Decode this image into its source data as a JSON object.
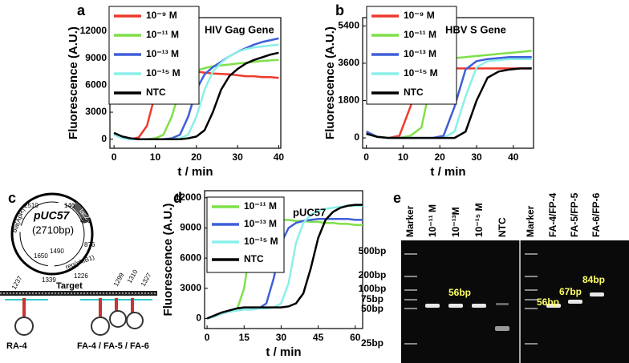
{
  "chart_data": [
    {
      "type": "line",
      "panel": "a",
      "title": "HIV Gag Gene",
      "x_label": "t / min",
      "y_label": "Fluorescence (A.U.)",
      "x": [
        0,
        2,
        4,
        6,
        8,
        10,
        12,
        14,
        16,
        18,
        20,
        22,
        24,
        26,
        28,
        30,
        32,
        34,
        36,
        38,
        40
      ],
      "series": [
        {
          "name": "10⁻⁹ M",
          "color": "#ee3a2e",
          "values": [
            700,
            200,
            0,
            200,
            1500,
            5000,
            7000,
            7500,
            7600,
            7600,
            7500,
            7400,
            7300,
            7250,
            7200,
            7100,
            7000,
            7000,
            6900,
            6900,
            6800
          ]
        },
        {
          "name": "10⁻¹¹ M",
          "color": "#7fe04a",
          "values": [
            600,
            200,
            0,
            0,
            0,
            100,
            500,
            2500,
            5500,
            7000,
            7600,
            7900,
            8100,
            8200,
            8300,
            8400,
            8500,
            8600,
            8700,
            8750,
            8800
          ]
        },
        {
          "name": "10⁻¹³ M",
          "color": "#3f5fd8",
          "values": [
            500,
            150,
            0,
            0,
            0,
            0,
            0,
            100,
            500,
            2500,
            5500,
            7200,
            8000,
            8600,
            9200,
            9700,
            10100,
            10500,
            10800,
            11000,
            11200
          ]
        },
        {
          "name": "10⁻¹⁵ M",
          "color": "#8af0e8",
          "values": [
            500,
            150,
            0,
            0,
            0,
            0,
            0,
            0,
            100,
            500,
            2500,
            5500,
            7500,
            8500,
            9200,
            9700,
            10000,
            10200,
            10300,
            10400,
            10500
          ]
        },
        {
          "name": "NTC",
          "color": "#000000",
          "values": [
            700,
            300,
            100,
            0,
            0,
            0,
            0,
            0,
            0,
            100,
            300,
            1000,
            3000,
            5500,
            7000,
            7800,
            8400,
            8800,
            9100,
            9400,
            9600
          ]
        }
      ],
      "xlim": [
        -1,
        40.5
      ],
      "xticks": [
        0,
        10,
        20,
        30,
        40
      ],
      "ylim": [
        -1000,
        13500
      ],
      "yticks": [
        0,
        3000,
        6000,
        9000,
        12000
      ]
    },
    {
      "type": "line",
      "panel": "b",
      "title": "HBV S Gene",
      "x_label": "t / min",
      "y_label": "Fluorescence (A.U.)",
      "x": [
        0,
        3,
        6,
        9,
        12,
        15,
        18,
        21,
        24,
        27,
        30,
        33,
        36,
        39,
        42,
        45
      ],
      "series": [
        {
          "name": "10⁻⁹ M",
          "color": "#ee3a2e",
          "values": [
            300,
            50,
            0,
            100,
            1500,
            3100,
            3300,
            3350,
            3350,
            3350,
            3350,
            3350,
            3350,
            3350,
            3350,
            3350
          ]
        },
        {
          "name": "10⁻¹¹ M",
          "color": "#7fe04a",
          "values": [
            200,
            50,
            0,
            0,
            100,
            500,
            3000,
            3800,
            3850,
            3900,
            3950,
            4000,
            4050,
            4100,
            4150,
            4200
          ]
        },
        {
          "name": "10⁻¹³ M",
          "color": "#3f5fd8",
          "values": [
            300,
            50,
            0,
            0,
            0,
            0,
            0,
            100,
            1500,
            3300,
            3700,
            3800,
            3850,
            3900,
            3900,
            3900
          ]
        },
        {
          "name": "10⁻¹⁵ M",
          "color": "#8af0e8",
          "values": [
            200,
            50,
            0,
            0,
            0,
            0,
            0,
            0,
            300,
            2000,
            3400,
            3700,
            3750,
            3800,
            3800,
            3800
          ]
        },
        {
          "name": "NTC",
          "color": "#000000",
          "values": [
            200,
            50,
            0,
            0,
            0,
            0,
            0,
            0,
            0,
            300,
            1800,
            2900,
            3200,
            3300,
            3350,
            3350
          ]
        }
      ],
      "xlim": [
        -1,
        45.5
      ],
      "xticks": [
        0,
        10,
        20,
        30,
        40
      ],
      "ylim": [
        -500,
        5800
      ],
      "yticks": [
        0,
        1800,
        3600,
        5400
      ]
    },
    {
      "type": "line",
      "panel": "d",
      "title": "pUC57",
      "x_label": "t / min",
      "y_label": "Fluorescence (A.U.)",
      "x": [
        0,
        3,
        6,
        9,
        12,
        15,
        18,
        21,
        24,
        27,
        30,
        33,
        36,
        39,
        42,
        45,
        48,
        51,
        54,
        57,
        60,
        63
      ],
      "series": [
        {
          "name": "10⁻¹¹ M",
          "color": "#7fe04a",
          "values": [
            0,
            200,
            500,
            700,
            800,
            3000,
            8000,
            9500,
            9700,
            9800,
            9800,
            9800,
            9700,
            9700,
            9600,
            9600,
            9500,
            9500,
            9400,
            9400,
            9300,
            9300
          ]
        },
        {
          "name": "10⁻¹³ M",
          "color": "#3f5fd8",
          "values": [
            0,
            200,
            500,
            700,
            800,
            900,
            900,
            1000,
            1500,
            4000,
            7500,
            9000,
            9500,
            9700,
            9800,
            9900,
            9900,
            9900,
            9900,
            9900,
            9800,
            9800
          ]
        },
        {
          "name": "10⁻¹⁵ M",
          "color": "#8af0e8",
          "values": [
            0,
            200,
            500,
            700,
            800,
            900,
            900,
            1000,
            1000,
            1100,
            1500,
            3500,
            7500,
            9500,
            10300,
            10700,
            10900,
            11000,
            11100,
            11200,
            11200,
            11200
          ]
        },
        {
          "name": "NTC",
          "color": "#000000",
          "values": [
            0,
            300,
            600,
            800,
            1000,
            1100,
            1100,
            1100,
            1100,
            1100,
            1100,
            1200,
            1500,
            2500,
            5000,
            8000,
            9800,
            10600,
            11000,
            11200,
            11300,
            11300
          ]
        }
      ],
      "xlim": [
        -1,
        63
      ],
      "xticks": [
        0,
        15,
        30,
        45,
        60
      ],
      "ylim": [
        -1000,
        12700
      ],
      "yticks": [
        0,
        3000,
        6000,
        9000,
        12000
      ]
    }
  ],
  "diagram": {
    "panel": "c",
    "plasmid": "pUC57",
    "size": "(2710bp)",
    "positions": [
      "146",
      "2510",
      "493",
      "876",
      "1650",
      "1490",
      "1339",
      "1226"
    ],
    "genes": [
      "bla(ApR)",
      "rep(pMB1)",
      "lacZ"
    ],
    "target": "Target",
    "sites": [
      "1237",
      "1299",
      "1310",
      "1327"
    ],
    "primers": [
      "RA-4",
      "FA-4 / FA-5 / FA-6"
    ]
  },
  "gel": {
    "panel": "e",
    "lanes": [
      "Marker",
      "10⁻¹¹ M",
      "10⁻¹³M",
      "10⁻¹⁵ M",
      "NTC",
      "Marker",
      "FA-4/FP-4",
      "FA-5/FP-5",
      "FA-6/FP-6"
    ],
    "ladder": [
      "500bp",
      "200bp",
      "100bp",
      "75bp",
      "50bp",
      "25bp"
    ],
    "band_labels": [
      "56bp",
      "56bp",
      "67bp",
      "84bp"
    ]
  }
}
